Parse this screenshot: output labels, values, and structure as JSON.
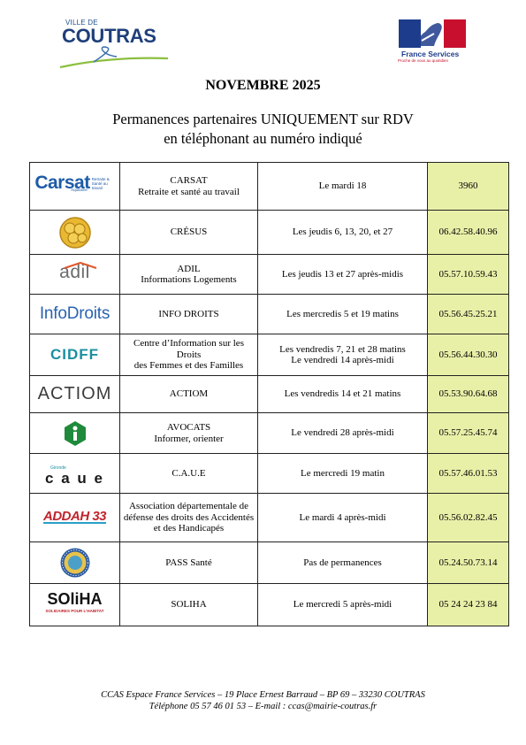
{
  "header": {
    "ville_label": "VILLE DE",
    "ville_name": "COUTRAS",
    "fs_brand": "France Services",
    "fs_tagline": "Proche de vous au quotidien"
  },
  "title": {
    "month": "NOVEMBRE 2025",
    "line1": "Permanences partenaires UNIQUEMENT sur RDV",
    "line2": "en téléphonant au numéro indiqué"
  },
  "partners": [
    {
      "logo_text": "Carsat",
      "logo_sub": "Retraite & Santé au travail",
      "logo_region": "Aquitaine",
      "name": "CARSAT\nRetraite et santé au travail",
      "schedule": "Le mardi 18",
      "phone": "3960"
    },
    {
      "logo_text": "",
      "name": "CRÉSUS",
      "schedule": "Les jeudis 6, 13, 20, et 27",
      "phone": "06.42.58.40.96"
    },
    {
      "logo_text": "adil",
      "name": "ADIL\nInformations Logements",
      "schedule": "Les jeudis 13 et 27 après-midis",
      "phone": "05.57.10.59.43"
    },
    {
      "logo_text": "InfoDroits",
      "name": "INFO DROITS",
      "schedule": "Les mercredis 5 et 19 matins",
      "phone": "05.56.45.25.21"
    },
    {
      "logo_text": "CIDFF",
      "name": "Centre d’Information sur les Droits\ndes Femmes et des Familles",
      "schedule": "Les vendredis 7, 21 et 28 matins\nLe vendredi 14 après-midi",
      "phone": "05.56.44.30.30"
    },
    {
      "logo_text": "ACTIOM",
      "name": "ACTIOM",
      "schedule": "Les vendredis 14 et 21 matins",
      "phone": "05.53.90.64.68"
    },
    {
      "logo_text": "",
      "name": "AVOCATS\nInformer, orienter",
      "schedule": "Le vendredi 28 après-midi",
      "phone": "05.57.25.45.74"
    },
    {
      "logo_text": "c a u e",
      "logo_sub": "Gironde",
      "name": "C.A.U.E",
      "schedule": "Le mercredi 19 matin",
      "phone": "05.57.46.01.53"
    },
    {
      "logo_text": "ADDAH 33",
      "name": "Association départementale de défense des droits des Accidentés et des Handicapés",
      "schedule": "Le mardi 4 après-midi",
      "phone": "05.56.02.82.45"
    },
    {
      "logo_text": "",
      "name": "PASS Santé",
      "schedule": "Pas de permanences",
      "phone": "05.24.50.73.14"
    },
    {
      "logo_text": "SOliHA",
      "logo_sub": "SOLIDAIRES POUR L'HABITAT",
      "name": "SOLIHA",
      "schedule": "Le mercredi 5 après-midi",
      "phone": "05 24 24 23 84"
    }
  ],
  "footer": {
    "line1": "CCAS Espace France Services – 19 Place Ernest Barraud – BP 69 – 33230 COUTRAS",
    "line2": "Téléphone 05 57 46 01 53 – E-mail : ccas@mairie-coutras.fr"
  },
  "colors": {
    "phone_cell_bg": "#e8f0a8",
    "coutras_blue": "#1f3f7a",
    "carsat_blue": "#1e5ba8",
    "adil_gray": "#6b6b6b",
    "cidff_teal": "#1a8fa0",
    "avocats_green": "#1f8a3c",
    "addah_red": "#c0232c",
    "fs_blue": "#1e3c8c",
    "fs_red": "#c8102e"
  }
}
